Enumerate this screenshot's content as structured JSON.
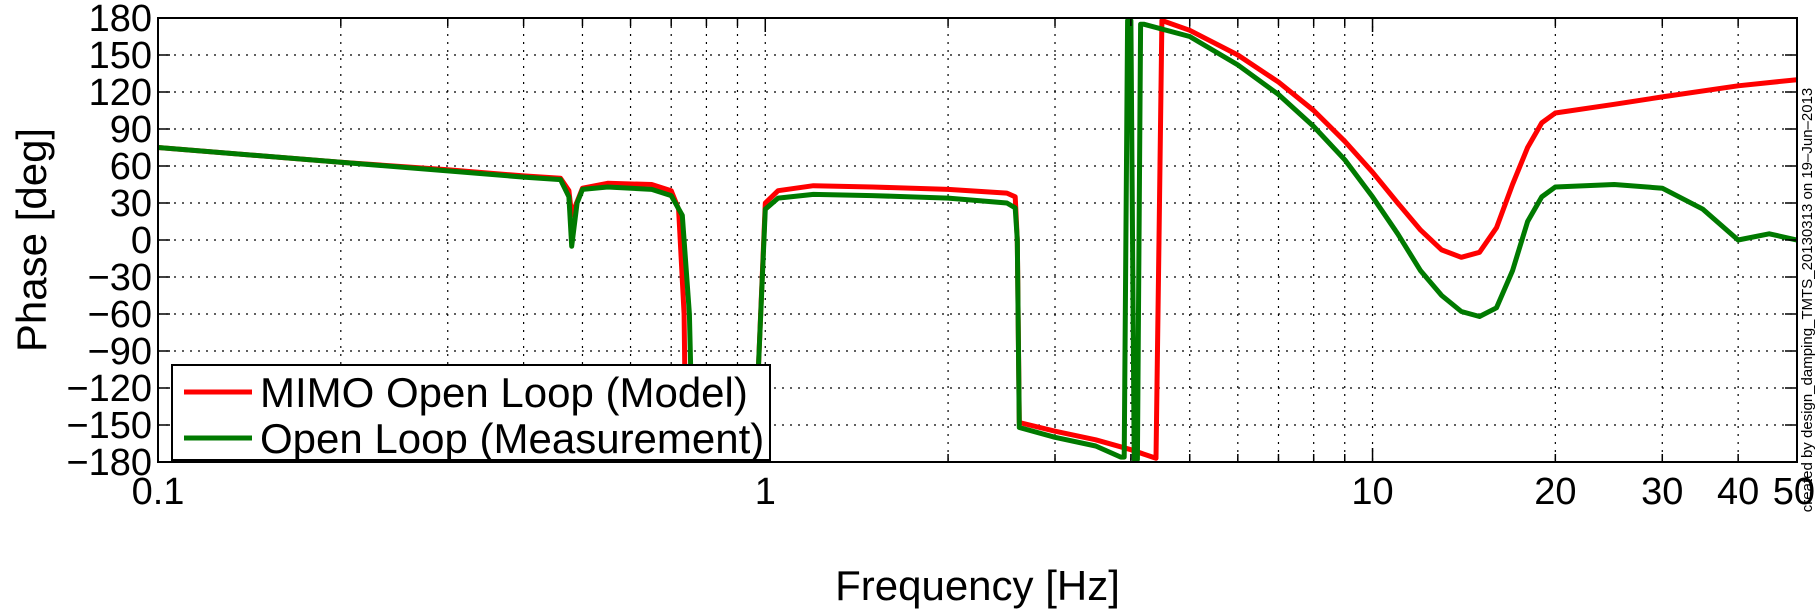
{
  "chart_data": {
    "type": "line",
    "xlabel": "Frequency [Hz]",
    "ylabel": "Phase [deg]",
    "xscale": "log",
    "xlim": [
      0.1,
      50
    ],
    "ylim": [
      -180,
      180
    ],
    "grid": true,
    "legend_position": "bottom-left",
    "xticks": [
      0.1,
      1,
      10,
      20,
      30,
      40,
      50
    ],
    "xtick_labels": [
      "0.1",
      "1",
      "10",
      "20",
      "30",
      "40",
      "50"
    ],
    "yticks": [
      180,
      150,
      120,
      90,
      60,
      30,
      0,
      -30,
      -60,
      -90,
      -120,
      -150,
      -180
    ],
    "ytick_labels": [
      "180",
      "150",
      "120",
      "90",
      "60",
      "30",
      "0",
      "−30",
      "−60",
      "−90",
      "−120",
      "−150",
      "−180"
    ],
    "side_note": "created by design_damping_TMTS_20130313 on 19–Jun–2013",
    "series": [
      {
        "name": "MIMO Open Loop (Model)",
        "color": "#ff0000",
        "x": [
          0.1,
          0.2,
          0.3,
          0.4,
          0.46,
          0.475,
          0.48,
          0.5,
          0.55,
          0.65,
          0.7,
          0.72,
          0.735,
          0.74,
          0.745,
          0.97,
          0.975,
          1.0,
          1.05,
          1.2,
          1.5,
          2.0,
          2.5,
          2.58,
          2.6,
          2.62,
          3.0,
          3.5,
          4.0,
          4.4,
          4.45,
          4.5,
          5.0,
          6.0,
          7.0,
          8.0,
          9.0,
          10.0,
          11.0,
          12.0,
          13.0,
          14.0,
          15.0,
          16.0,
          17.0,
          18.0,
          19.0,
          20.0,
          25.0,
          30.0,
          40.0,
          50.0
        ],
        "y": [
          75,
          63,
          57,
          52,
          50,
          40,
          20,
          42,
          46,
          45,
          40,
          25,
          -60,
          -180,
          -180,
          -180,
          -100,
          30,
          40,
          44,
          43,
          41,
          38,
          35,
          0,
          -148,
          -155,
          -162,
          -170,
          -177,
          0,
          178,
          170,
          150,
          128,
          105,
          80,
          55,
          30,
          8,
          -8,
          -14,
          -10,
          10,
          45,
          75,
          95,
          103,
          110,
          116,
          125,
          130
        ]
      },
      {
        "name": "Open Loop (Measurement)",
        "color": "#007a00",
        "x": [
          0.1,
          0.2,
          0.3,
          0.4,
          0.46,
          0.475,
          0.48,
          0.49,
          0.5,
          0.55,
          0.65,
          0.7,
          0.73,
          0.75,
          0.76,
          0.765,
          0.97,
          0.975,
          1.0,
          1.05,
          1.2,
          1.5,
          2.0,
          2.5,
          2.58,
          2.6,
          2.62,
          3.0,
          3.5,
          3.85,
          3.9,
          3.95,
          4.0,
          4.05,
          4.1,
          4.15,
          4.2,
          5.0,
          6.0,
          7.0,
          8.0,
          9.0,
          10.0,
          11.0,
          12.0,
          13.0,
          14.0,
          15.0,
          16.0,
          17.0,
          18.0,
          19.0,
          20.0,
          25.0,
          30.0,
          35.0,
          40.0,
          45.0,
          50.0
        ],
        "y": [
          75,
          63,
          56,
          51,
          49,
          35,
          -5,
          30,
          41,
          43,
          41,
          36,
          20,
          -60,
          -180,
          -180,
          -180,
          -100,
          25,
          34,
          37,
          36,
          34,
          30,
          26,
          0,
          -152,
          -160,
          -167,
          -176,
          -176,
          178,
          178,
          -178,
          -178,
          175,
          175,
          165,
          142,
          118,
          92,
          65,
          35,
          5,
          -25,
          -45,
          -58,
          -62,
          -55,
          -25,
          15,
          35,
          43,
          45,
          42,
          25,
          0,
          5,
          0
        ]
      }
    ]
  }
}
